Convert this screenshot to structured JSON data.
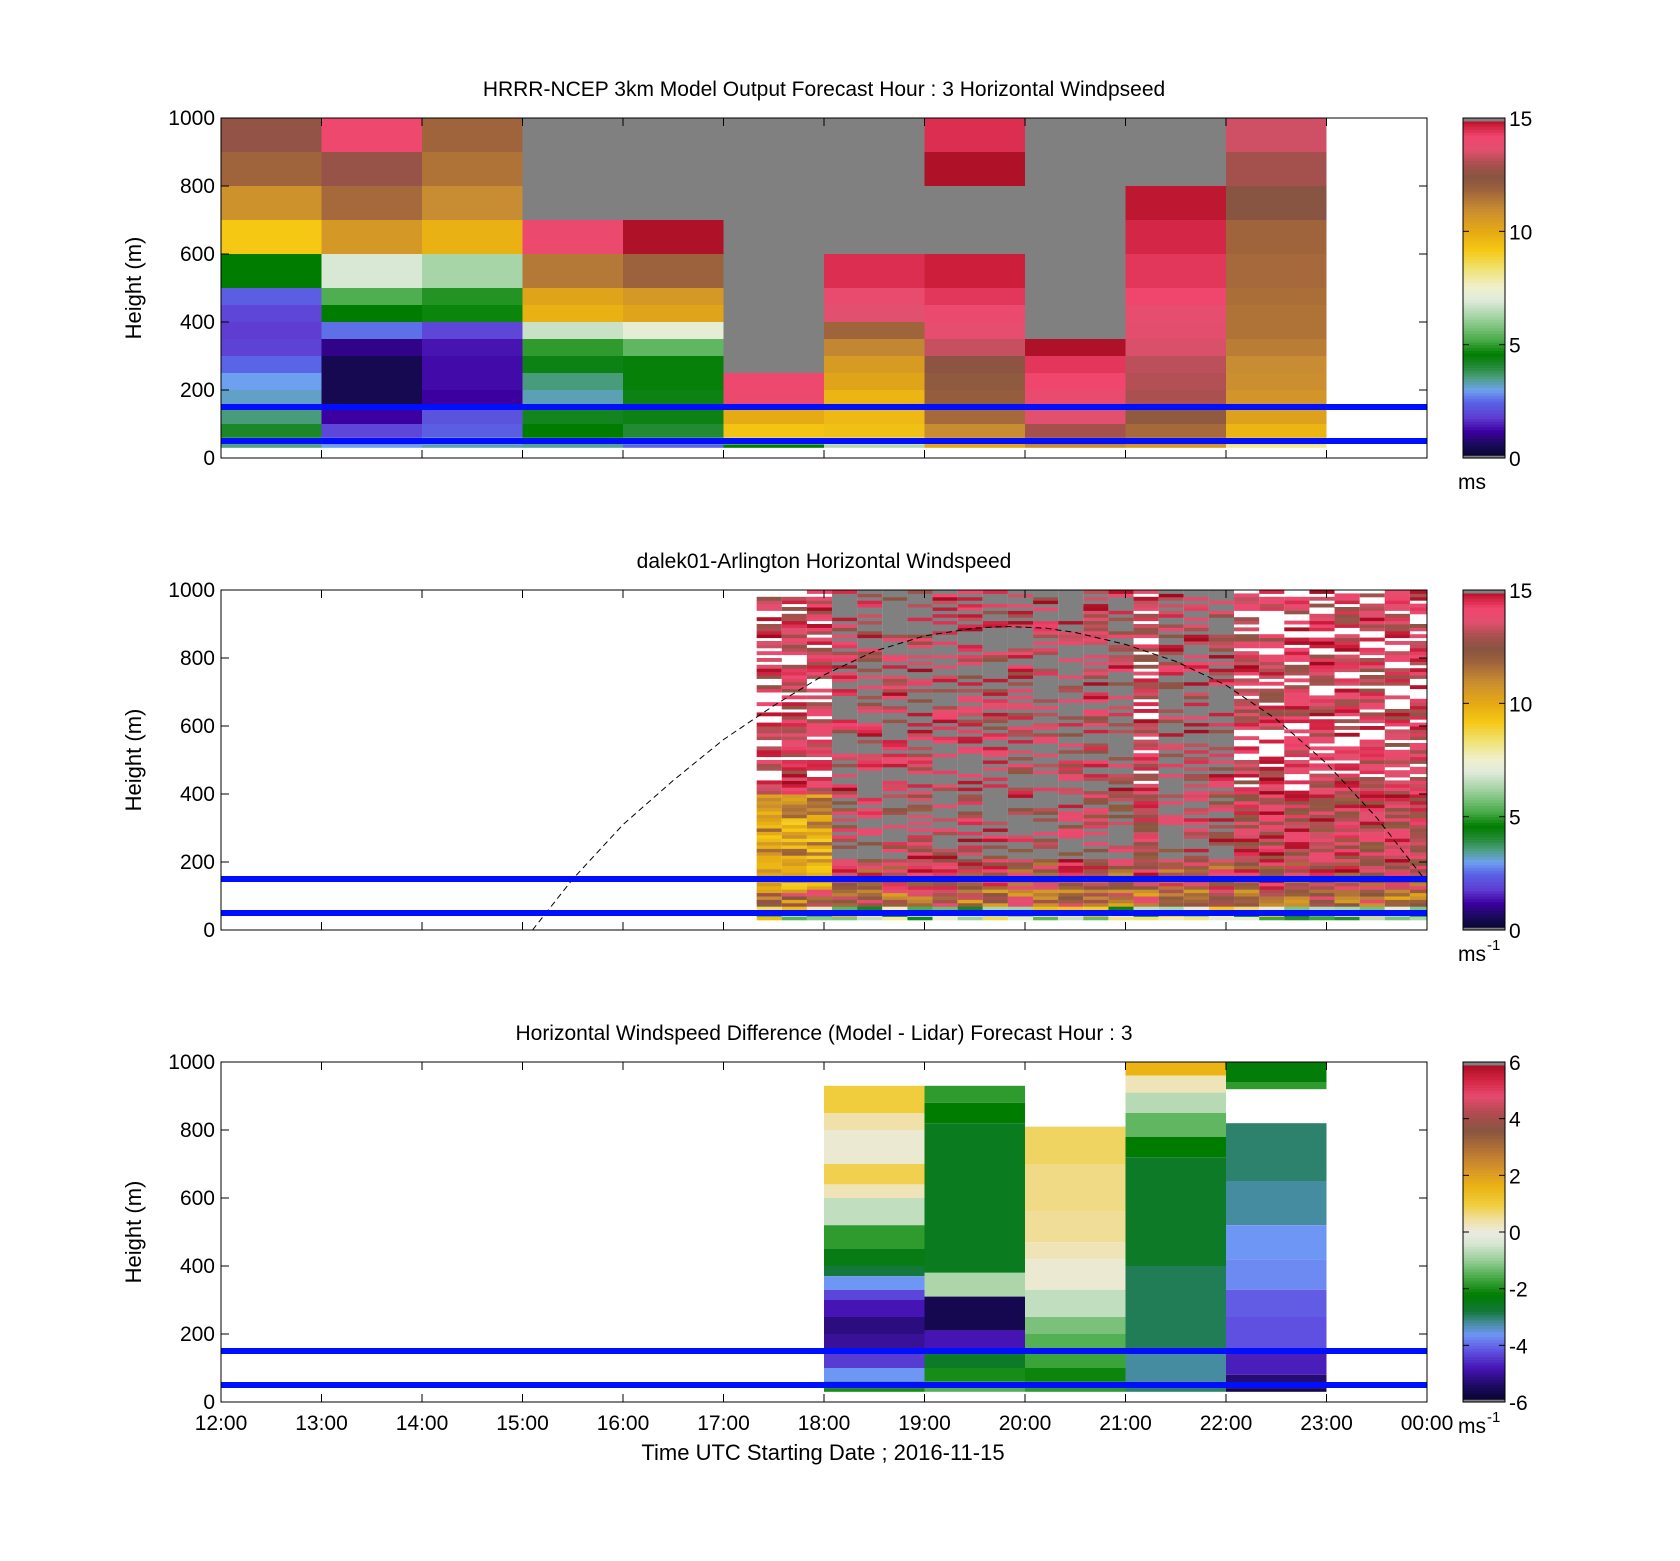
{
  "chart_data": [
    {
      "type": "heatmap",
      "title": "HRRR-NCEP 3km Model Output   Forecast Hour : 3 Horizontal Windpseed",
      "ylabel": "Height (m)",
      "xlim": [
        12,
        24
      ],
      "ylim": [
        0,
        1000
      ],
      "yticks": [
        "0",
        "200",
        "400",
        "600",
        "800",
        "1000"
      ],
      "colorbar": {
        "min": 0,
        "max": 15,
        "ticks": [
          "0",
          "5",
          "10",
          "15"
        ],
        "unit": "ms",
        "unit_sup": "",
        "palette": "windspeed"
      },
      "reference_lines_m": [
        150,
        50
      ],
      "reference_color": "#0010ff",
      "columns": [
        {
          "t": 12,
          "levels": [
            [
              1000,
              12.6
            ],
            [
              900,
              11.8
            ],
            [
              800,
              10.8
            ],
            [
              700,
              9.2
            ],
            [
              600,
              4.6
            ],
            [
              500,
              2.4
            ],
            [
              450,
              2.0
            ],
            [
              400,
              1.8
            ],
            [
              350,
              1.9
            ],
            [
              300,
              2.5
            ],
            [
              250,
              3.0
            ],
            [
              200,
              3.2
            ],
            [
              150,
              3.6
            ],
            [
              100,
              4.2
            ],
            [
              60,
              3.7
            ],
            [
              40,
              3.5
            ]
          ]
        },
        {
          "t": 13,
          "levels": [
            [
              1000,
              14.1
            ],
            [
              900,
              12.7
            ],
            [
              800,
              11.7
            ],
            [
              700,
              10.6
            ],
            [
              600,
              6.9
            ],
            [
              500,
              5.3
            ],
            [
              450,
              4.6
            ],
            [
              400,
              2.6
            ],
            [
              350,
              1.0
            ],
            [
              300,
              0.5
            ],
            [
              250,
              0.5
            ],
            [
              200,
              0.5
            ],
            [
              150,
              1.2
            ],
            [
              100,
              2.0
            ],
            [
              60,
              2.4
            ],
            [
              40,
              3.0
            ]
          ]
        },
        {
          "t": 14,
          "levels": [
            [
              1000,
              11.8
            ],
            [
              900,
              11.5
            ],
            [
              800,
              11.0
            ],
            [
              700,
              9.8
            ],
            [
              600,
              6.3
            ],
            [
              500,
              4.9
            ],
            [
              450,
              4.7
            ],
            [
              400,
              2.0
            ],
            [
              350,
              1.4
            ],
            [
              300,
              1.3
            ],
            [
              250,
              1.3
            ],
            [
              200,
              1.2
            ],
            [
              150,
              2.2
            ],
            [
              100,
              2.4
            ],
            [
              60,
              3.1
            ],
            [
              40,
              3.3
            ]
          ]
        },
        {
          "t": 15,
          "levels": [
            [
              1000,
              null
            ],
            [
              700,
              14.0
            ],
            [
              600,
              11.4
            ],
            [
              500,
              10.2
            ],
            [
              450,
              9.8
            ],
            [
              400,
              6.7
            ],
            [
              350,
              5.0
            ],
            [
              300,
              4.4
            ],
            [
              250,
              3.6
            ],
            [
              200,
              3.3
            ],
            [
              150,
              4.3
            ],
            [
              100,
              4.6
            ],
            [
              60,
              3.9
            ],
            [
              40,
              3.4
            ]
          ]
        },
        {
          "t": 16,
          "levels": [
            [
              1000,
              null
            ],
            [
              700,
              14.9
            ],
            [
              600,
              11.9
            ],
            [
              500,
              10.6
            ],
            [
              450,
              10.2
            ],
            [
              400,
              7.2
            ],
            [
              350,
              5.5
            ],
            [
              300,
              4.5
            ],
            [
              250,
              4.5
            ],
            [
              200,
              4.4
            ],
            [
              150,
              4.4
            ],
            [
              100,
              4.1
            ],
            [
              60,
              3.5
            ],
            [
              40,
              2.5
            ]
          ]
        },
        {
          "t": 17,
          "levels": [
            [
              1000,
              null
            ],
            [
              250,
              14.1
            ],
            [
              200,
              14.0
            ],
            [
              150,
              10.0
            ],
            [
              100,
              9.3
            ],
            [
              60,
              6.8
            ],
            [
              40,
              4.6
            ]
          ]
        },
        {
          "t": 18,
          "levels": [
            [
              1000,
              null
            ],
            [
              600,
              14.5
            ],
            [
              500,
              13.9
            ],
            [
              450,
              13.6
            ],
            [
              400,
              11.8
            ],
            [
              350,
              11.1
            ],
            [
              300,
              10.5
            ],
            [
              250,
              10.2
            ],
            [
              200,
              9.7
            ],
            [
              150,
              9.6
            ],
            [
              100,
              9.4
            ],
            [
              60,
              7.9
            ],
            [
              40,
              6.4
            ]
          ]
        },
        {
          "t": 19,
          "levels": [
            [
              1000,
              14.5
            ],
            [
              900,
              14.9
            ],
            [
              800,
              null
            ],
            [
              600,
              14.7
            ],
            [
              500,
              14.4
            ],
            [
              450,
              14.0
            ],
            [
              400,
              13.8
            ],
            [
              350,
              13.3
            ],
            [
              300,
              12.5
            ],
            [
              250,
              12.2
            ],
            [
              200,
              12.1
            ],
            [
              150,
              11.7
            ],
            [
              100,
              11.0
            ],
            [
              60,
              10.6
            ],
            [
              40,
              10.1
            ]
          ]
        },
        {
          "t": 20,
          "levels": [
            [
              1000,
              null
            ],
            [
              350,
              14.9
            ],
            [
              300,
              14.4
            ],
            [
              250,
              14.2
            ],
            [
              200,
              13.9
            ],
            [
              150,
              13.6
            ],
            [
              100,
              12.9
            ],
            [
              60,
              12.0
            ],
            [
              40,
              11.0
            ]
          ]
        },
        {
          "t": 21,
          "levels": [
            [
              1000,
              null
            ],
            [
              800,
              14.8
            ],
            [
              700,
              14.6
            ],
            [
              600,
              14.4
            ],
            [
              500,
              14.2
            ],
            [
              450,
              13.8
            ],
            [
              400,
              13.7
            ],
            [
              350,
              13.5
            ],
            [
              300,
              13.2
            ],
            [
              250,
              13.1
            ],
            [
              200,
              13.0
            ],
            [
              150,
              12.2
            ],
            [
              100,
              11.7
            ],
            [
              60,
              11.4
            ],
            [
              40,
              10.6
            ]
          ]
        },
        {
          "t": 22,
          "levels": [
            [
              1000,
              13.4
            ],
            [
              900,
              12.9
            ],
            [
              800,
              12.4
            ],
            [
              700,
              11.8
            ],
            [
              600,
              11.7
            ],
            [
              500,
              11.6
            ],
            [
              450,
              11.5
            ],
            [
              400,
              11.5
            ],
            [
              350,
              11.3
            ],
            [
              300,
              11.0
            ],
            [
              250,
              10.9
            ],
            [
              200,
              10.7
            ],
            [
              150,
              10.3
            ],
            [
              100,
              9.7
            ],
            [
              60,
              9.2
            ],
            [
              40,
              8.0
            ]
          ]
        }
      ]
    },
    {
      "type": "heatmap",
      "title": "dalek01-Arlington  Horizontal Windspeed",
      "ylabel": "Height (m)",
      "xlim": [
        12,
        24
      ],
      "ylim": [
        0,
        1000
      ],
      "yticks": [
        "0",
        "200",
        "400",
        "600",
        "800",
        "1000"
      ],
      "colorbar": {
        "min": 0,
        "max": 15,
        "ticks": [
          "0",
          "5",
          "10",
          "15"
        ],
        "unit": "ms",
        "unit_sup": "-1",
        "palette": "windspeed"
      },
      "reference_lines_m": [
        150,
        50
      ],
      "reference_color": "#0010ff",
      "lidar_window": {
        "start": 17.33,
        "end": 24.0,
        "column_width_h": 0.25
      },
      "profile_note": "lidar sweeps: lower 200 m mostly 8–13 m/s, upper levels 12–15 m/s with gaps and saturated (gray) returns",
      "dashed_curve": {
        "points": [
          [
            15.1,
            0
          ],
          [
            15.5,
            150
          ],
          [
            16.0,
            310
          ],
          [
            16.5,
            440
          ],
          [
            17.0,
            560
          ],
          [
            17.5,
            660
          ],
          [
            18.0,
            750
          ],
          [
            18.5,
            820
          ],
          [
            19.0,
            865
          ],
          [
            19.5,
            888
          ],
          [
            19.8,
            893
          ],
          [
            20.2,
            888
          ],
          [
            20.5,
            875
          ],
          [
            21.0,
            840
          ],
          [
            21.5,
            790
          ],
          [
            22.0,
            720
          ],
          [
            22.5,
            620
          ],
          [
            23.0,
            490
          ],
          [
            23.5,
            330
          ],
          [
            24.0,
            140
          ]
        ]
      }
    },
    {
      "type": "heatmap",
      "title": "Horizontal Windspeed Difference (Model - Lidar) Forecast Hour : 3",
      "xlabel": "Time UTC  Starting Date ; 2016-11-15",
      "ylabel": "Height (m)",
      "xlim": [
        12,
        24
      ],
      "ylim": [
        0,
        1000
      ],
      "yticks": [
        "0",
        "200",
        "400",
        "600",
        "800",
        "1000"
      ],
      "xticks": [
        "12:00",
        "13:00",
        "14:00",
        "15:00",
        "16:00",
        "17:00",
        "18:00",
        "19:00",
        "20:00",
        "21:00",
        "22:00",
        "23:00",
        "00:00"
      ],
      "colorbar": {
        "min": -6,
        "max": 6,
        "ticks": [
          "-6",
          "-4",
          "-2",
          "0",
          "2",
          "4",
          "6"
        ],
        "unit": "ms",
        "unit_sup": "-1",
        "palette": "difference"
      },
      "reference_lines_m": [
        150,
        50
      ],
      "reference_color": "#0010ff",
      "columns": [
        {
          "t": 18,
          "levels": [
            [
              930,
              1.0
            ],
            [
              850,
              0.4
            ],
            [
              800,
              0.1
            ],
            [
              700,
              0.9
            ],
            [
              640,
              0.3
            ],
            [
              600,
              -0.6
            ],
            [
              520,
              -1.8
            ],
            [
              450,
              -2.4
            ],
            [
              400,
              -2.8
            ],
            [
              370,
              -3.6
            ],
            [
              330,
              -4.3
            ],
            [
              300,
              -4.8
            ],
            [
              250,
              -5.2
            ],
            [
              200,
              -5.0
            ],
            [
              150,
              -4.4
            ],
            [
              100,
              -3.6
            ],
            [
              60,
              -2.8
            ],
            [
              40,
              -2.0
            ]
          ]
        },
        {
          "t": 19,
          "levels": [
            [
              930,
              -1.8
            ],
            [
              880,
              -2.2
            ],
            [
              820,
              -2.5
            ],
            [
              380,
              -0.8
            ],
            [
              310,
              -5.6
            ],
            [
              210,
              -4.8
            ],
            [
              150,
              -2.6
            ],
            [
              100,
              -2.0
            ],
            [
              60,
              -1.5
            ]
          ]
        },
        {
          "t": 20,
          "levels": [
            [
              810,
              0.8
            ],
            [
              700,
              0.6
            ],
            [
              560,
              0.5
            ],
            [
              470,
              0.3
            ],
            [
              420,
              0.1
            ],
            [
              330,
              -0.6
            ],
            [
              250,
              -1.2
            ],
            [
              200,
              -1.5
            ],
            [
              150,
              -1.7
            ],
            [
              100,
              -2.1
            ],
            [
              60,
              -1.8
            ]
          ]
        },
        {
          "t": 21,
          "levels": [
            [
              1000,
              1.6
            ],
            [
              960,
              0.3
            ],
            [
              910,
              -0.7
            ],
            [
              850,
              -1.4
            ],
            [
              780,
              -2.2
            ],
            [
              720,
              -2.6
            ],
            [
              400,
              -2.9
            ],
            [
              150,
              -3.2
            ],
            [
              60,
              -3.0
            ]
          ]
        },
        {
          "t": 22,
          "levels": [
            [
              1000,
              -2.3
            ],
            [
              940,
              -1.8
            ],
            [
              920,
              null
            ],
            [
              820,
              -3.0
            ],
            [
              650,
              -3.2
            ],
            [
              520,
              -3.6
            ],
            [
              420,
              -3.7
            ],
            [
              330,
              -4.1
            ],
            [
              250,
              -4.2
            ],
            [
              150,
              -4.7
            ],
            [
              80,
              -5.3
            ],
            [
              40,
              -5.6
            ]
          ]
        }
      ]
    }
  ]
}
